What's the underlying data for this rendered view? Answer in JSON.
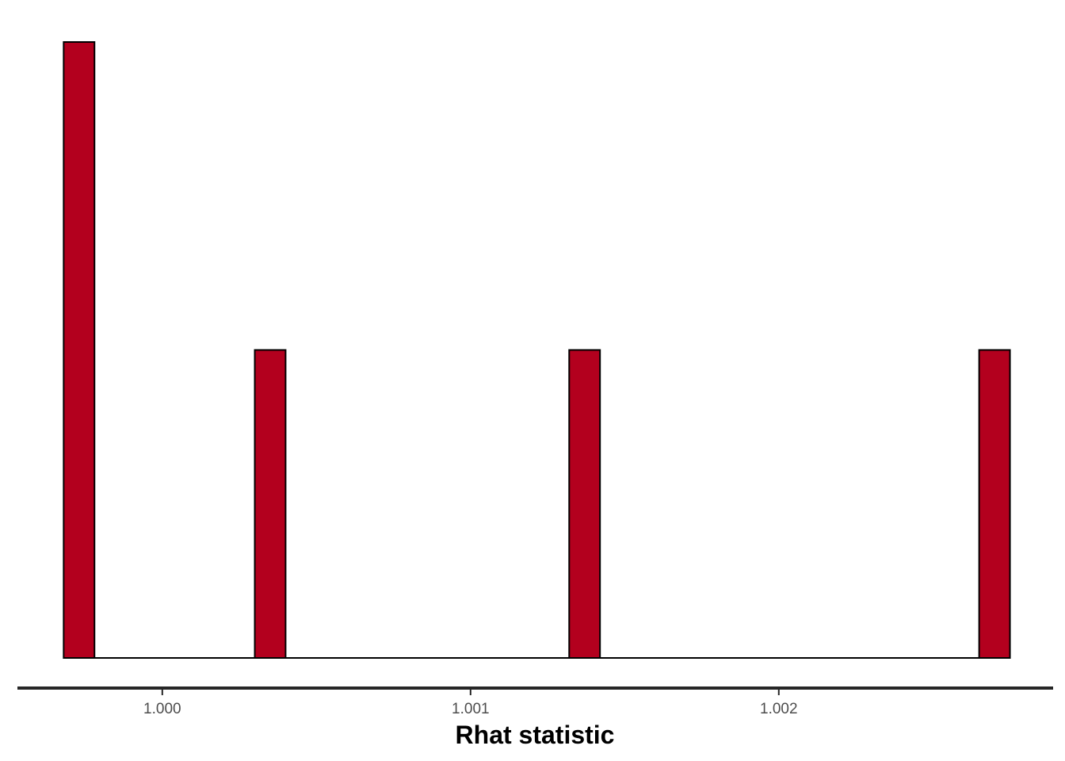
{
  "chart_data": {
    "type": "bar",
    "subtype": "histogram",
    "xlabel": "Rhat statistic",
    "ylabel": "",
    "x_ticks": [
      {
        "value": 1.0,
        "label": "1.000"
      },
      {
        "value": 1.001,
        "label": "1.001"
      },
      {
        "value": 1.002,
        "label": "1.002"
      }
    ],
    "xlim": [
      0.99953,
      1.00289
    ],
    "bins": [
      {
        "x": 0.99973,
        "count": 2
      },
      {
        "x": 1.00035,
        "count": 1
      },
      {
        "x": 1.00137,
        "count": 1
      },
      {
        "x": 1.0027,
        "count": 1
      }
    ],
    "bin_width": 0.0001,
    "ylim": [
      0,
      2.1
    ],
    "y_axis_visible": false,
    "grid": false,
    "legend": "none",
    "colors": {
      "bar_fill": "#b3001e",
      "bar_stroke": "#000000",
      "axis_line": "#262626",
      "tick_label": "#4d4d4d"
    }
  }
}
